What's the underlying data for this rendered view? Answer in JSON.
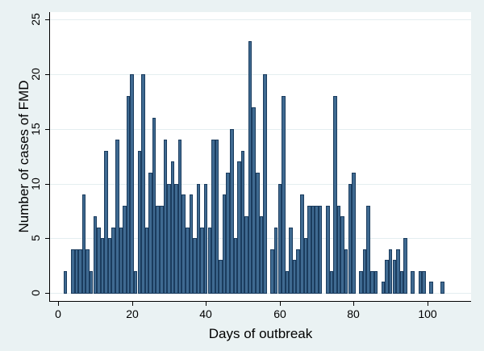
{
  "chart_data": {
    "type": "bar",
    "title": "",
    "xlabel": "Days of outbreak",
    "ylabel": "Number of cases of FMD",
    "xlim": [
      0,
      104
    ],
    "ylim": [
      0,
      25
    ],
    "x_ticks": [
      0,
      20,
      40,
      60,
      80,
      100
    ],
    "y_ticks": [
      0,
      5,
      10,
      15,
      20,
      25
    ],
    "grid": true,
    "legend": null,
    "bar_color": "#3f6a91",
    "bar_edge_color": "#1b3c5e",
    "background_color": "#eaf2f3",
    "plot_background_color": "#ffffff",
    "x": [
      1,
      2,
      3,
      4,
      5,
      6,
      7,
      8,
      9,
      10,
      11,
      12,
      13,
      14,
      15,
      16,
      17,
      18,
      19,
      20,
      21,
      22,
      23,
      24,
      25,
      26,
      27,
      28,
      29,
      30,
      31,
      32,
      33,
      34,
      35,
      36,
      37,
      38,
      39,
      40,
      41,
      42,
      43,
      44,
      45,
      46,
      47,
      48,
      49,
      50,
      51,
      52,
      53,
      54,
      55,
      56,
      57,
      58,
      59,
      60,
      61,
      62,
      63,
      64,
      65,
      66,
      67,
      68,
      69,
      70,
      71,
      72,
      73,
      74,
      75,
      76,
      77,
      78,
      79,
      80,
      81,
      82,
      83,
      84,
      85,
      86,
      87,
      88,
      89,
      90,
      91,
      92,
      93,
      94,
      95,
      96,
      97,
      98,
      99,
      100,
      101,
      102,
      103,
      104
    ],
    "values": [
      0,
      2,
      0,
      4,
      4,
      4,
      9,
      4,
      2,
      7,
      6,
      5,
      13,
      5,
      6,
      14,
      6,
      8,
      18,
      20,
      2,
      13,
      20,
      6,
      11,
      16,
      8,
      8,
      14,
      10,
      12,
      10,
      14,
      9,
      6,
      9,
      5,
      10,
      6,
      10,
      6,
      14,
      14,
      3,
      9,
      11,
      15,
      5,
      12,
      13,
      7,
      23,
      17,
      11,
      7,
      20,
      0,
      4,
      6,
      10,
      18,
      2,
      6,
      3,
      4,
      9,
      5,
      8,
      8,
      8,
      8,
      0,
      8,
      2,
      18,
      8,
      7,
      4,
      10,
      11,
      0,
      2,
      4,
      8,
      2,
      2,
      0,
      1,
      3,
      4,
      3,
      4,
      2,
      5,
      0,
      2,
      0,
      2,
      2,
      0,
      1,
      0,
      0,
      1
    ]
  },
  "axes": {
    "x_tick_labels": [
      "0",
      "20",
      "40",
      "60",
      "80",
      "100"
    ],
    "y_tick_labels": [
      "0",
      "5",
      "10",
      "15",
      "20",
      "25"
    ],
    "x_title": "Days of outbreak",
    "y_title": "Number of cases of FMD"
  }
}
